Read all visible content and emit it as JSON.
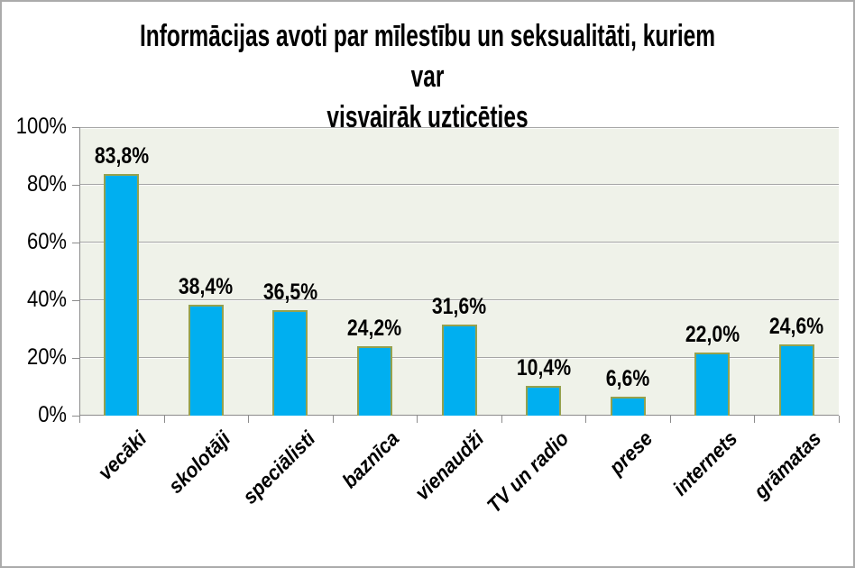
{
  "title": {
    "line1": "Informācijas avoti par mīlestību un seksualitāti, kuriem var",
    "line2": "visvairāk uzticēties"
  },
  "chart_data": {
    "type": "bar",
    "title": "Informācijas avoti par mīlestību un seksualitāti, kuriem var visvairāk uzticēties",
    "categories": [
      "vecāki",
      "skolotāji",
      "speciālisti",
      "baznīca",
      "vienaudži",
      "TV un radio",
      "prese",
      "internets",
      "grāmatas"
    ],
    "values": [
      83.8,
      38.4,
      36.5,
      24.2,
      31.6,
      10.4,
      6.6,
      22.0,
      24.6
    ],
    "value_labels": [
      "83,8%",
      "38,4%",
      "36,5%",
      "24,2%",
      "31,6%",
      "10,4%",
      "6,6%",
      "22,0%",
      "24,6%"
    ],
    "xlabel": "",
    "ylabel": "",
    "ylim": [
      0,
      100
    ],
    "yticks": [
      0,
      20,
      40,
      60,
      80,
      100
    ],
    "ytick_labels": [
      "0%",
      "20%",
      "40%",
      "60%",
      "80%",
      "100%"
    ],
    "grid": true,
    "legend": false,
    "colors": {
      "bar_fill": "#00aff0",
      "bar_border": "#95a14e",
      "plot_background": "#eff2e9",
      "gridline": "#a6a6a6",
      "axis_line": "#8c8c8c",
      "text": "#000000",
      "frame_border": "#ababab",
      "chart_background": "#ffffff"
    }
  }
}
